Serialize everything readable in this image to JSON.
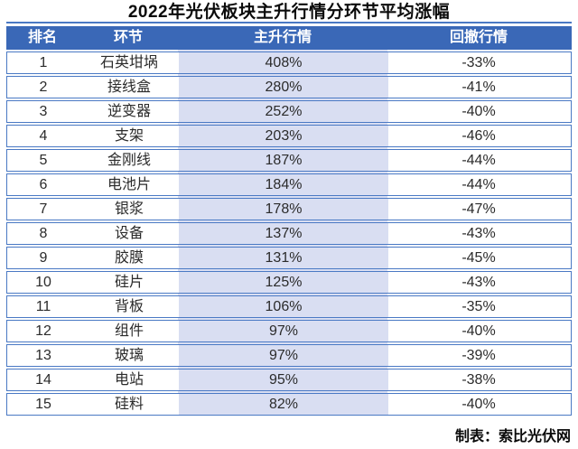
{
  "title": "2022年光伏板块主升行情分环节平均涨幅",
  "footer": {
    "credit": "制表：索比光伏网"
  },
  "colors": {
    "header_bg": "#3a68b7",
    "header_text": "#ffffff",
    "highlight_column_bg": "#d9def2",
    "border": "#4a79c4",
    "body_text": "#2b2b2b",
    "title_text": "#0b0b0b"
  },
  "chart_data": {
    "type": "table",
    "title": "2022年光伏板块主升行情分环节平均涨幅",
    "columns": [
      "排名",
      "环节",
      "主升行情",
      "回撤行情"
    ],
    "highlighted_column": "主升行情",
    "rows": [
      [
        "1",
        "石英坩埚",
        "408%",
        "-33%"
      ],
      [
        "2",
        "接线盒",
        "280%",
        "-41%"
      ],
      [
        "3",
        "逆变器",
        "252%",
        "-40%"
      ],
      [
        "4",
        "支架",
        "203%",
        "-46%"
      ],
      [
        "5",
        "金刚线",
        "187%",
        "-44%"
      ],
      [
        "6",
        "电池片",
        "184%",
        "-44%"
      ],
      [
        "7",
        "银浆",
        "178%",
        "-47%"
      ],
      [
        "8",
        "设备",
        "137%",
        "-43%"
      ],
      [
        "9",
        "胶膜",
        "131%",
        "-45%"
      ],
      [
        "10",
        "硅片",
        "125%",
        "-43%"
      ],
      [
        "11",
        "背板",
        "106%",
        "-35%"
      ],
      [
        "12",
        "组件",
        "97%",
        "-40%"
      ],
      [
        "13",
        "玻璃",
        "97%",
        "-39%"
      ],
      [
        "14",
        "电站",
        "95%",
        "-38%"
      ],
      [
        "15",
        "硅料",
        "82%",
        "-40%"
      ]
    ]
  }
}
